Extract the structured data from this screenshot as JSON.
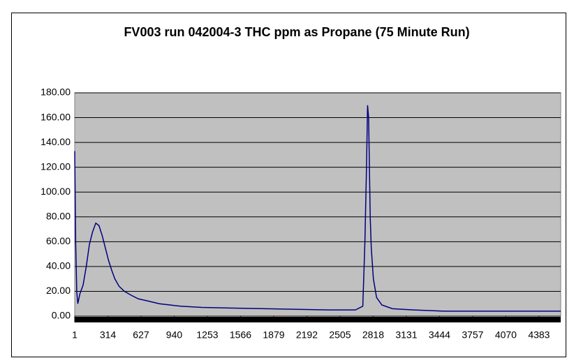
{
  "chart_data": {
    "type": "line",
    "title": "FV003 run 042004-3 THC ppm as Propane (75 Minute Run)",
    "series": [
      {
        "name": "THC ppm",
        "color": "#000080",
        "x": [
          1,
          10,
          20,
          30,
          50,
          80,
          110,
          140,
          170,
          200,
          230,
          260,
          290,
          320,
          350,
          380,
          420,
          470,
          530,
          600,
          700,
          800,
          900,
          1000,
          1200,
          1500,
          1800,
          2100,
          2400,
          2650,
          2720,
          2740,
          2755,
          2765,
          2775,
          2790,
          2800,
          2820,
          2850,
          2900,
          3000,
          3200,
          3500,
          4000,
          4588
        ],
        "values": [
          133,
          60,
          20,
          10,
          18,
          25,
          40,
          58,
          68,
          75,
          73,
          65,
          55,
          45,
          37,
          30,
          24,
          20,
          17,
          14,
          12,
          10,
          9,
          8,
          7,
          6.5,
          6,
          5.5,
          5,
          5,
          8,
          60,
          120,
          170,
          160,
          80,
          55,
          30,
          15,
          9,
          6,
          5,
          4,
          4,
          4
        ]
      }
    ],
    "xlim": [
      1,
      4588
    ],
    "xticks": [
      1,
      314,
      627,
      940,
      1253,
      1566,
      1879,
      2192,
      2505,
      2818,
      3131,
      3444,
      3757,
      4070,
      4383
    ],
    "ylim": [
      0,
      180
    ],
    "yticks": [
      {
        "value": 0,
        "label": "0.00"
      },
      {
        "value": 20,
        "label": "20.00"
      },
      {
        "value": 40,
        "label": "40.00"
      },
      {
        "value": 60,
        "label": "60.00"
      },
      {
        "value": 80,
        "label": "80.00"
      },
      {
        "value": 100,
        "label": "100.00"
      },
      {
        "value": 120,
        "label": "120.00"
      },
      {
        "value": 140,
        "label": "140.00"
      },
      {
        "value": 160,
        "label": "160.00"
      },
      {
        "value": 180,
        "label": "180.00"
      }
    ],
    "grid": true
  }
}
